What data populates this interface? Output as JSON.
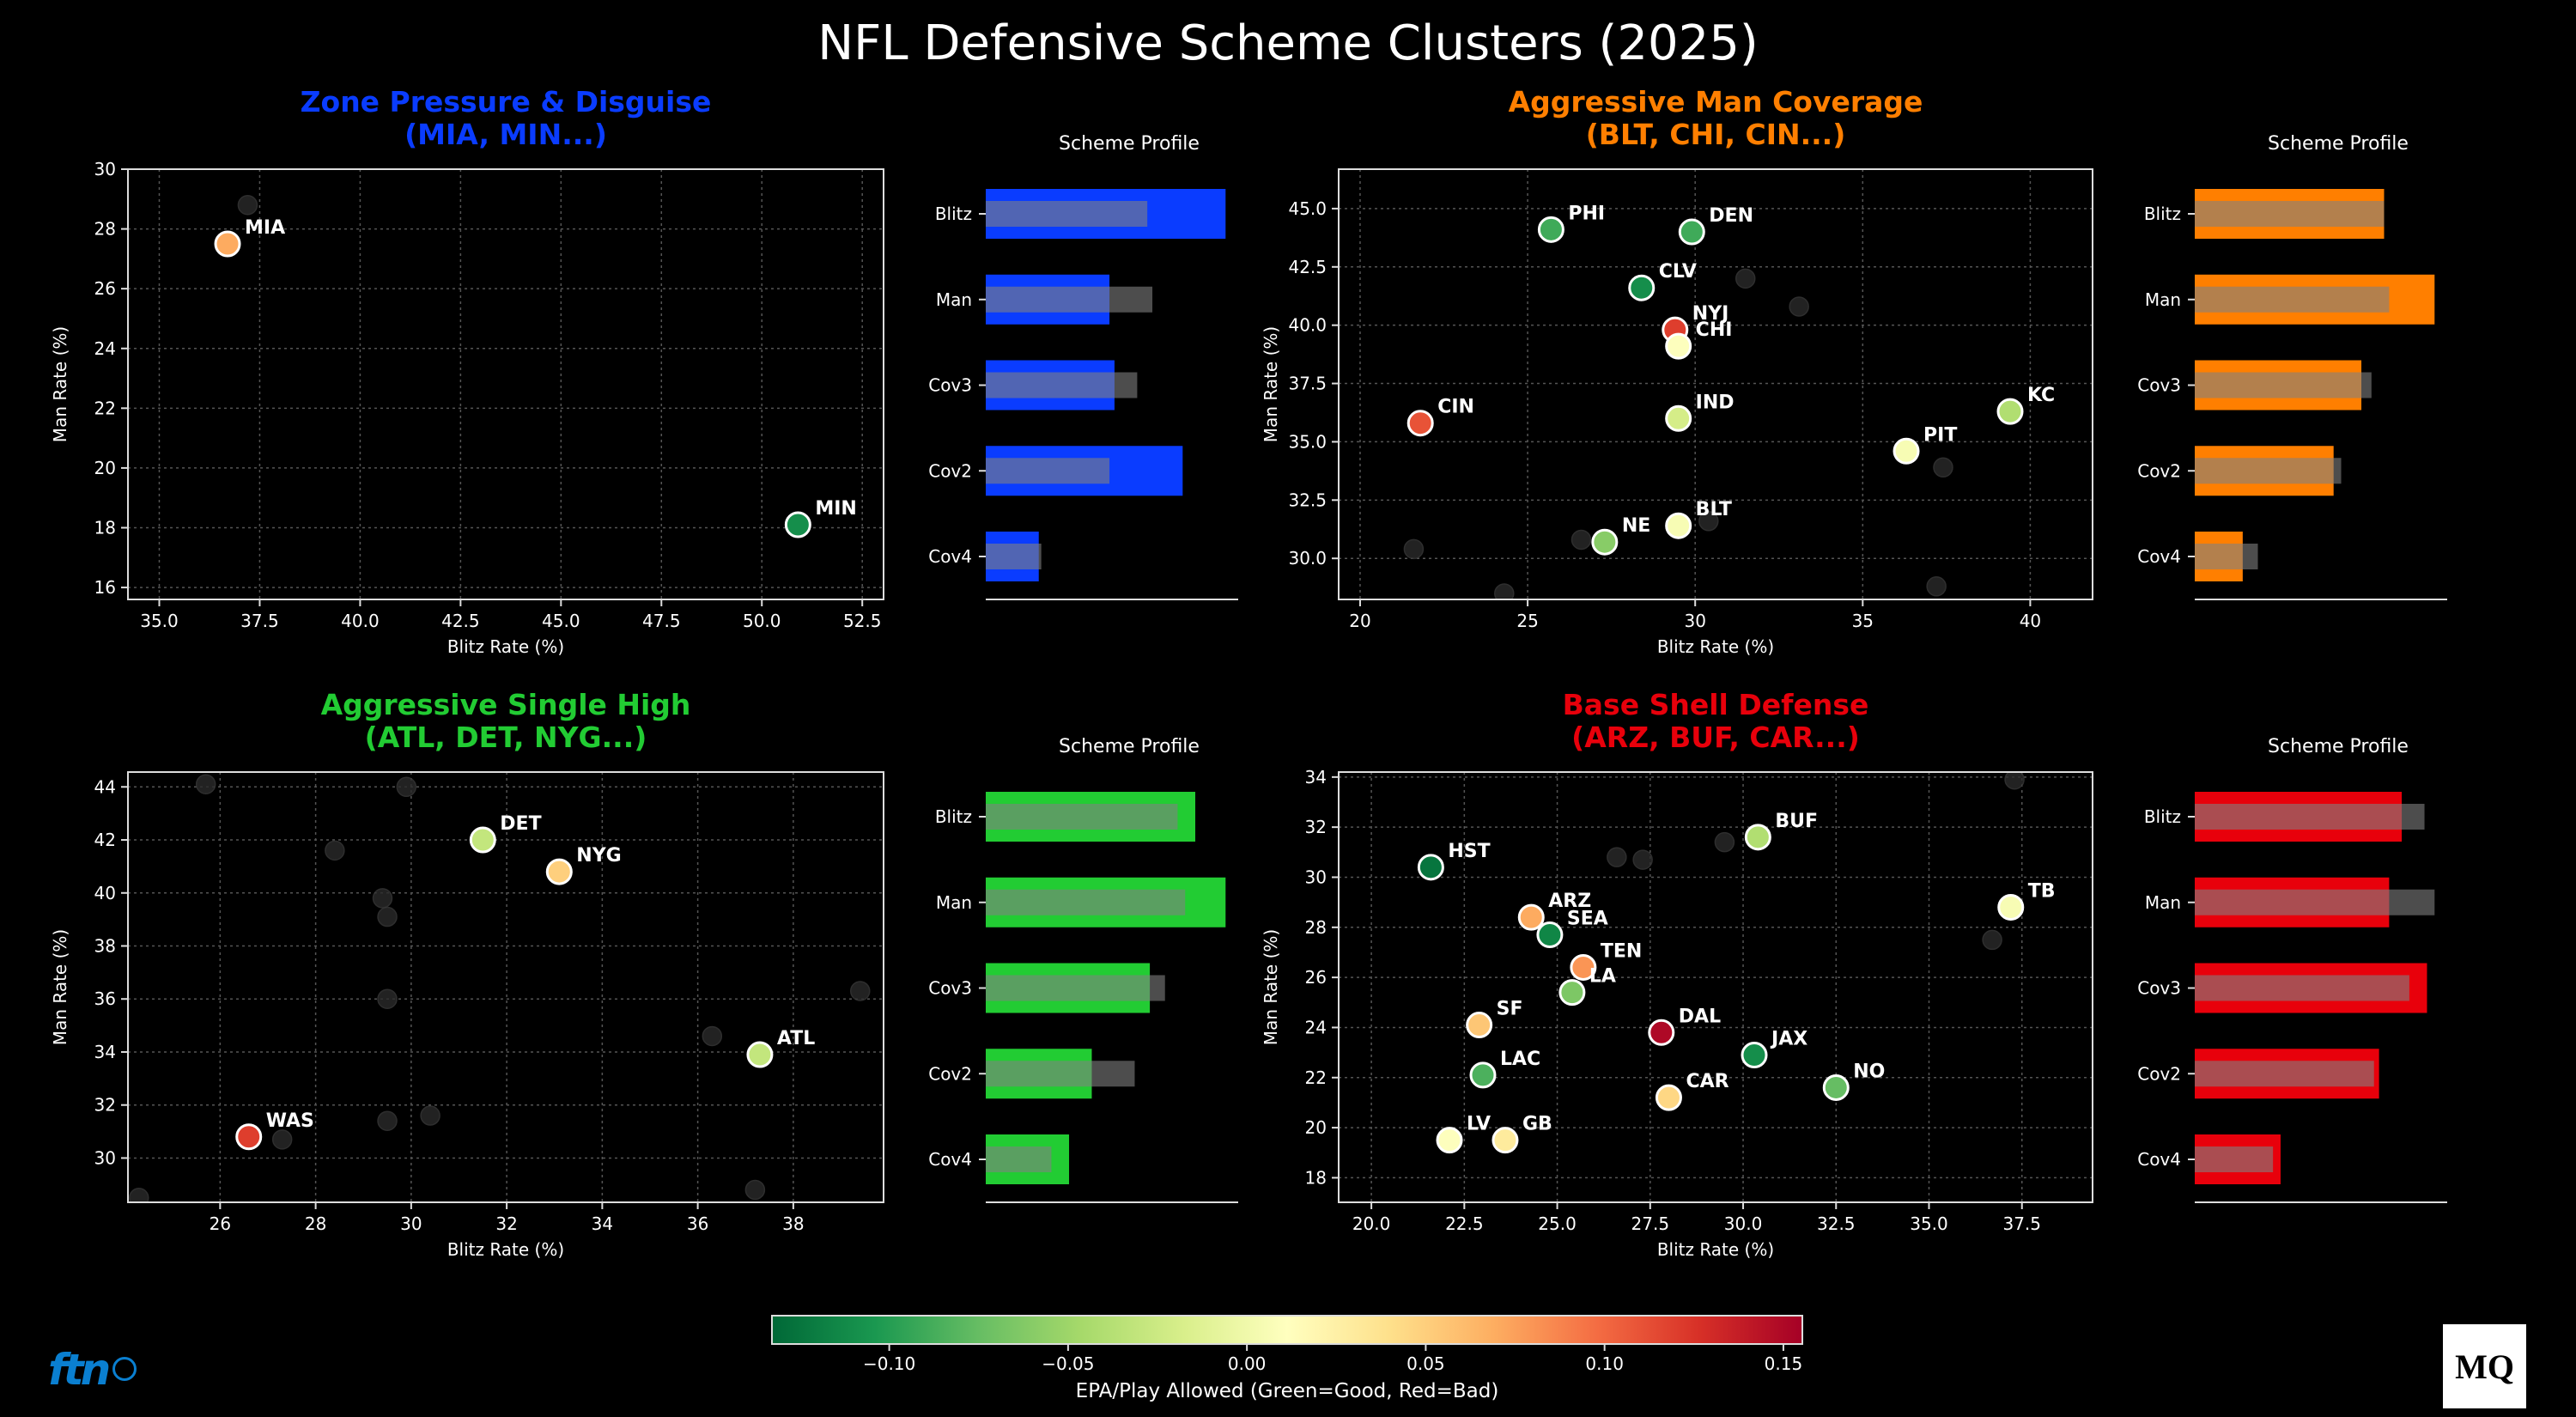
{
  "title": "NFL Defensive Scheme Clusters (2025)",
  "colorbar": {
    "label": "EPA/Play Allowed (Green=Good, Red=Bad)",
    "vmin": -0.1328,
    "vmax": 0.1553,
    "ticks": [
      -0.1,
      -0.05,
      0.0,
      0.05,
      0.1,
      0.15
    ],
    "tick_labels": [
      "−0.10",
      "−0.05",
      "0.00",
      "0.05",
      "0.10",
      "0.15"
    ],
    "stops": [
      "#006837",
      "#1a9850",
      "#66bd63",
      "#a6d96a",
      "#d9ef8b",
      "#ffffbf",
      "#fee08b",
      "#fdae61",
      "#f46d43",
      "#d73027",
      "#a50026"
    ]
  },
  "logos": {
    "left": "ftn",
    "right": "MQ"
  },
  "chart_data": [
    {
      "type": "scatter",
      "title": "Zone Pressure & Disguise",
      "subtitle": "(MIA, MIN...)",
      "color": "#0a3cff",
      "xlabel": "Blitz Rate (%)",
      "ylabel": "Man Rate (%)",
      "xlim": [
        34.22,
        53.03
      ],
      "ylim": [
        15.6,
        30.0
      ],
      "xticks": [
        35.0,
        37.5,
        40.0,
        42.5,
        45.0,
        47.5,
        50.0,
        52.5
      ],
      "xtick_fmt": 1,
      "yticks": [
        16,
        18,
        20,
        22,
        24,
        26,
        28,
        30
      ],
      "ytick_fmt": 0,
      "grid": true,
      "points": [
        {
          "team": "MIA",
          "blitz": 36.7,
          "man": 27.5,
          "epa": 0.07
        },
        {
          "team": "MIN",
          "blitz": 50.9,
          "man": 18.1,
          "epa": -0.11
        }
      ],
      "other_points": [
        [
          37.2,
          28.8
        ]
      ],
      "profile": {
        "title": "Scheme Profile",
        "categories": [
          "Blitz",
          "Man",
          "Cov3",
          "Cov2",
          "Cov4"
        ],
        "cluster": [
          0.95,
          0.49,
          0.51,
          0.78,
          0.21
        ],
        "league": [
          0.64,
          0.66,
          0.6,
          0.49,
          0.22
        ]
      }
    },
    {
      "type": "scatter",
      "title": "Aggressive Man Coverage",
      "subtitle": "(BLT, CHI, CIN...)",
      "color": "#ff7f00",
      "xlabel": "Blitz Rate (%)",
      "ylabel": "Man Rate (%)",
      "xlim": [
        19.36,
        41.86
      ],
      "ylim": [
        28.24,
        46.69
      ],
      "xticks": [
        20,
        25,
        30,
        35,
        40
      ],
      "xtick_fmt": 0,
      "yticks": [
        30.0,
        32.5,
        35.0,
        37.5,
        40.0,
        42.5,
        45.0
      ],
      "ytick_fmt": 1,
      "grid": true,
      "points": [
        {
          "team": "PHI",
          "blitz": 25.7,
          "man": 44.1,
          "epa": -0.09
        },
        {
          "team": "DEN",
          "blitz": 29.9,
          "man": 44.0,
          "epa": -0.09
        },
        {
          "team": "CLV",
          "blitz": 28.4,
          "man": 41.6,
          "epa": -0.11
        },
        {
          "team": "NYJ",
          "blitz": 29.4,
          "man": 39.8,
          "epa": 0.12
        },
        {
          "team": "CHI",
          "blitz": 29.5,
          "man": 39.1,
          "epa": 0.01
        },
        {
          "team": "CIN",
          "blitz": 21.8,
          "man": 35.8,
          "epa": 0.11
        },
        {
          "team": "IND",
          "blitz": 29.5,
          "man": 36.0,
          "epa": -0.02
        },
        {
          "team": "KC",
          "blitz": 39.4,
          "man": 36.3,
          "epa": -0.04
        },
        {
          "team": "PIT",
          "blitz": 36.3,
          "man": 34.6,
          "epa": 0.005
        },
        {
          "team": "BLT",
          "blitz": 29.5,
          "man": 31.4,
          "epa": 0.005
        },
        {
          "team": "NE",
          "blitz": 27.3,
          "man": 30.7,
          "epa": -0.06
        }
      ],
      "other_points": [
        [
          31.5,
          42.0
        ],
        [
          33.1,
          40.8
        ],
        [
          37.4,
          33.9
        ],
        [
          30.4,
          31.6
        ],
        [
          26.6,
          30.8
        ],
        [
          21.6,
          30.4
        ],
        [
          24.3,
          28.5
        ],
        [
          37.2,
          28.8
        ]
      ],
      "profile": {
        "title": "Scheme Profile",
        "categories": [
          "Blitz",
          "Man",
          "Cov3",
          "Cov2",
          "Cov4"
        ],
        "cluster": [
          0.75,
          0.95,
          0.66,
          0.55,
          0.19
        ],
        "league": [
          0.75,
          0.77,
          0.7,
          0.58,
          0.25
        ]
      }
    },
    {
      "type": "scatter",
      "title": "Aggressive Single High",
      "subtitle": "(ATL, DET, NYG...)",
      "color": "#22cc33",
      "xlabel": "Blitz Rate (%)",
      "ylabel": "Man Rate (%)",
      "xlim": [
        24.07,
        39.89
      ],
      "ylim": [
        28.33,
        44.56
      ],
      "xticks": [
        26,
        28,
        30,
        32,
        34,
        36,
        38
      ],
      "xtick_fmt": 0,
      "yticks": [
        30,
        32,
        34,
        36,
        38,
        40,
        42,
        44
      ],
      "ytick_fmt": 0,
      "grid": true,
      "points": [
        {
          "team": "DET",
          "blitz": 31.5,
          "man": 42.0,
          "epa": -0.03
        },
        {
          "team": "NYG",
          "blitz": 33.1,
          "man": 40.8,
          "epa": 0.05
        },
        {
          "team": "ATL",
          "blitz": 37.3,
          "man": 33.9,
          "epa": -0.03
        },
        {
          "team": "WAS",
          "blitz": 26.6,
          "man": 30.8,
          "epa": 0.12
        }
      ],
      "other_points": [
        [
          25.7,
          44.1
        ],
        [
          29.9,
          44.0
        ],
        [
          28.4,
          41.6
        ],
        [
          29.4,
          39.8
        ],
        [
          29.5,
          39.1
        ],
        [
          29.5,
          36.0
        ],
        [
          39.4,
          36.3
        ],
        [
          36.3,
          34.6
        ],
        [
          30.4,
          31.6
        ],
        [
          29.5,
          31.4
        ],
        [
          27.3,
          30.7
        ],
        [
          24.3,
          28.5
        ],
        [
          37.2,
          28.8
        ]
      ],
      "profile": {
        "title": "Scheme Profile",
        "categories": [
          "Blitz",
          "Man",
          "Cov3",
          "Cov2",
          "Cov4"
        ],
        "cluster": [
          0.83,
          0.95,
          0.65,
          0.42,
          0.33
        ],
        "league": [
          0.76,
          0.79,
          0.71,
          0.59,
          0.26
        ]
      }
    },
    {
      "type": "scatter",
      "title": "Base Shell Defense",
      "subtitle": "(ARZ, BUF, CAR...)",
      "color": "#e8000b",
      "xlabel": "Blitz Rate (%)",
      "ylabel": "Man Rate (%)",
      "xlim": [
        19.12,
        39.4
      ],
      "ylim": [
        17.02,
        34.2
      ],
      "xticks": [
        20.0,
        22.5,
        25.0,
        27.5,
        30.0,
        32.5,
        35.0,
        37.5
      ],
      "xtick_fmt": 1,
      "yticks": [
        18,
        20,
        22,
        24,
        26,
        28,
        30,
        32,
        34
      ],
      "ytick_fmt": 0,
      "grid": true,
      "points": [
        {
          "team": "HST",
          "blitz": 21.6,
          "man": 30.4,
          "epa": -0.125
        },
        {
          "team": "BUF",
          "blitz": 30.4,
          "man": 31.6,
          "epa": -0.04
        },
        {
          "team": "TB",
          "blitz": 37.2,
          "man": 28.8,
          "epa": 0.005
        },
        {
          "team": "ARZ",
          "blitz": 24.3,
          "man": 28.4,
          "epa": 0.07
        },
        {
          "team": "SEA",
          "blitz": 24.8,
          "man": 27.7,
          "epa": -0.115
        },
        {
          "team": "TEN",
          "blitz": 25.7,
          "man": 26.4,
          "epa": 0.08
        },
        {
          "team": "LA",
          "blitz": 25.4,
          "man": 25.4,
          "epa": -0.065
        },
        {
          "team": "SF",
          "blitz": 22.9,
          "man": 24.1,
          "epa": 0.055
        },
        {
          "team": "DAL",
          "blitz": 27.8,
          "man": 23.8,
          "epa": 0.15
        },
        {
          "team": "JAX",
          "blitz": 30.3,
          "man": 22.9,
          "epa": -0.11
        },
        {
          "team": "LAC",
          "blitz": 23.0,
          "man": 22.1,
          "epa": -0.085
        },
        {
          "team": "NO",
          "blitz": 32.5,
          "man": 21.6,
          "epa": -0.075
        },
        {
          "team": "CAR",
          "blitz": 28.0,
          "man": 21.2,
          "epa": 0.045
        },
        {
          "team": "LV",
          "blitz": 22.1,
          "man": 19.5,
          "epa": 0.01
        },
        {
          "team": "GB",
          "blitz": 23.6,
          "man": 19.5,
          "epa": 0.03
        }
      ],
      "other_points": [
        [
          37.3,
          33.9
        ],
        [
          29.5,
          31.4
        ],
        [
          26.6,
          30.8
        ],
        [
          27.3,
          30.7
        ],
        [
          36.7,
          27.5
        ]
      ],
      "profile": {
        "title": "Scheme Profile",
        "categories": [
          "Blitz",
          "Man",
          "Cov3",
          "Cov2",
          "Cov4"
        ],
        "cluster": [
          0.82,
          0.77,
          0.92,
          0.73,
          0.34
        ],
        "league": [
          0.91,
          0.95,
          0.85,
          0.71,
          0.31
        ]
      }
    }
  ]
}
